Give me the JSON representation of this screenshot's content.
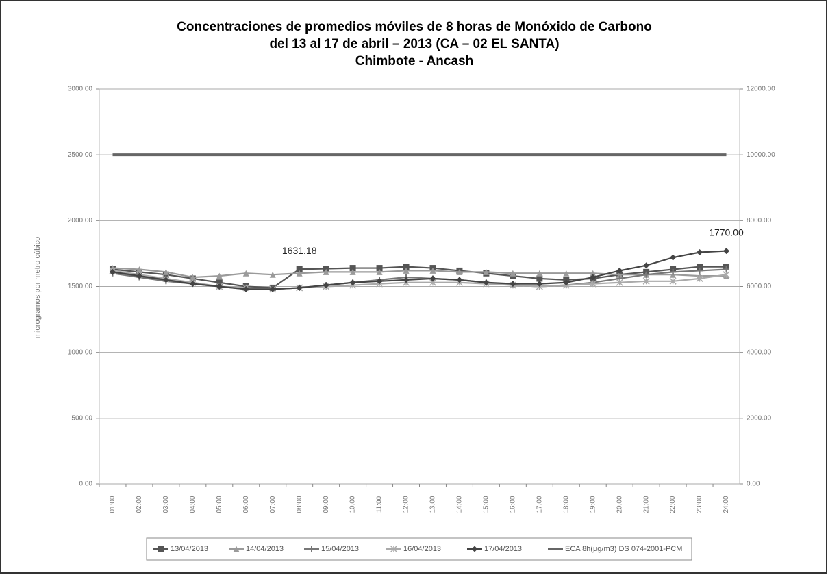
{
  "chart_data": {
    "type": "line",
    "title": [
      "Concentraciones de promedios móviles de 8 horas de Monóxido de Carbono",
      "del 13 al 17 de abril – 2013 (CA – 02 EL SANTA)",
      "Chimbote - Ancash"
    ],
    "y_label": "microgramos por metro cúbico",
    "categories": [
      "01:00",
      "02:00",
      "03:00",
      "04:00",
      "05:00",
      "06:00",
      "07:00",
      "08:00",
      "09:00",
      "10:00",
      "11:00",
      "12:00",
      "13:00",
      "14:00",
      "15:00",
      "16:00",
      "17:00",
      "18:00",
      "19:00",
      "20:00",
      "21:00",
      "22:00",
      "23:00",
      "24:00"
    ],
    "ylim": [
      0,
      3000
    ],
    "yticks": [
      {
        "value": 0,
        "label": "0.00"
      },
      {
        "value": 500,
        "label": "500.00"
      },
      {
        "value": 1000,
        "label": "1000.00"
      },
      {
        "value": 1500,
        "label": "1500.00"
      },
      {
        "value": 2000,
        "label": "2000.00"
      },
      {
        "value": 2500,
        "label": "2500.00"
      },
      {
        "value": 3000,
        "label": "3000.00"
      }
    ],
    "y2lim": [
      0,
      12000
    ],
    "y2ticks": [
      {
        "value": 0,
        "label": "0.00"
      },
      {
        "value": 2000,
        "label": "2000.00"
      },
      {
        "value": 4000,
        "label": "4000.00"
      },
      {
        "value": 6000,
        "label": "6000.00"
      },
      {
        "value": 8000,
        "label": "8000.00"
      },
      {
        "value": 10000,
        "label": "10000.00"
      },
      {
        "value": 12000,
        "label": "12000.00"
      }
    ],
    "grid": true,
    "legend": "bottom",
    "series": [
      {
        "name": "13/04/2013",
        "color": "#555555",
        "marker": "square",
        "values": [
          1630,
          1610,
          1590,
          1560,
          1530,
          1500,
          1490,
          1631.18,
          1635,
          1640,
          1640,
          1650,
          1640,
          1620,
          1600,
          1580,
          1560,
          1550,
          1560,
          1590,
          1610,
          1630,
          1650,
          1650
        ],
        "value_labels": [
          null,
          null,
          null,
          null,
          null,
          null,
          null,
          "1631.18",
          null,
          null,
          null,
          null,
          null,
          null,
          null,
          null,
          null,
          null,
          null,
          null,
          null,
          null,
          null,
          null
        ]
      },
      {
        "name": "14/04/2013",
        "color": "#9a9a9a",
        "marker": "triangle",
        "values": [
          1640,
          1630,
          1610,
          1570,
          1580,
          1600,
          1590,
          1600,
          1610,
          1610,
          1610,
          1620,
          1620,
          1610,
          1610,
          1600,
          1600,
          1600,
          1600,
          1590,
          1590,
          1590,
          1580,
          1580
        ]
      },
      {
        "name": "15/04/2013",
        "color": "#777777",
        "marker": "cross",
        "values": [
          1600,
          1570,
          1540,
          1520,
          1500,
          1480,
          1480,
          1490,
          1510,
          1530,
          1550,
          1570,
          1560,
          1550,
          1530,
          1510,
          1500,
          1510,
          1530,
          1560,
          1590,
          1610,
          1620,
          1630
        ]
      },
      {
        "name": "16/04/2013",
        "color": "#aaaaaa",
        "marker": "star",
        "values": [
          1620,
          1590,
          1560,
          1530,
          1500,
          1490,
          1480,
          1490,
          1500,
          1510,
          1520,
          1530,
          1530,
          1530,
          1520,
          1510,
          1500,
          1510,
          1520,
          1530,
          1540,
          1540,
          1560,
          1590
        ]
      },
      {
        "name": "17/04/2013",
        "color": "#444444",
        "marker": "diamond",
        "values": [
          1610,
          1580,
          1550,
          1520,
          1500,
          1480,
          1480,
          1490,
          1510,
          1530,
          1540,
          1550,
          1560,
          1550,
          1530,
          1520,
          1520,
          1530,
          1570,
          1620,
          1660,
          1720,
          1760,
          1770
        ],
        "value_labels": [
          null,
          null,
          null,
          null,
          null,
          null,
          null,
          null,
          null,
          null,
          null,
          null,
          null,
          null,
          null,
          null,
          null,
          null,
          null,
          null,
          null,
          null,
          null,
          "1770.00"
        ]
      },
      {
        "name": "ECA 8h(µg/m3) DS 074-2001-PCM",
        "color": "#666666",
        "marker": "none",
        "axis": "y2",
        "values": [
          10000,
          10000,
          10000,
          10000,
          10000,
          10000,
          10000,
          10000,
          10000,
          10000,
          10000,
          10000,
          10000,
          10000,
          10000,
          10000,
          10000,
          10000,
          10000,
          10000,
          10000,
          10000,
          10000,
          10000
        ]
      }
    ]
  }
}
